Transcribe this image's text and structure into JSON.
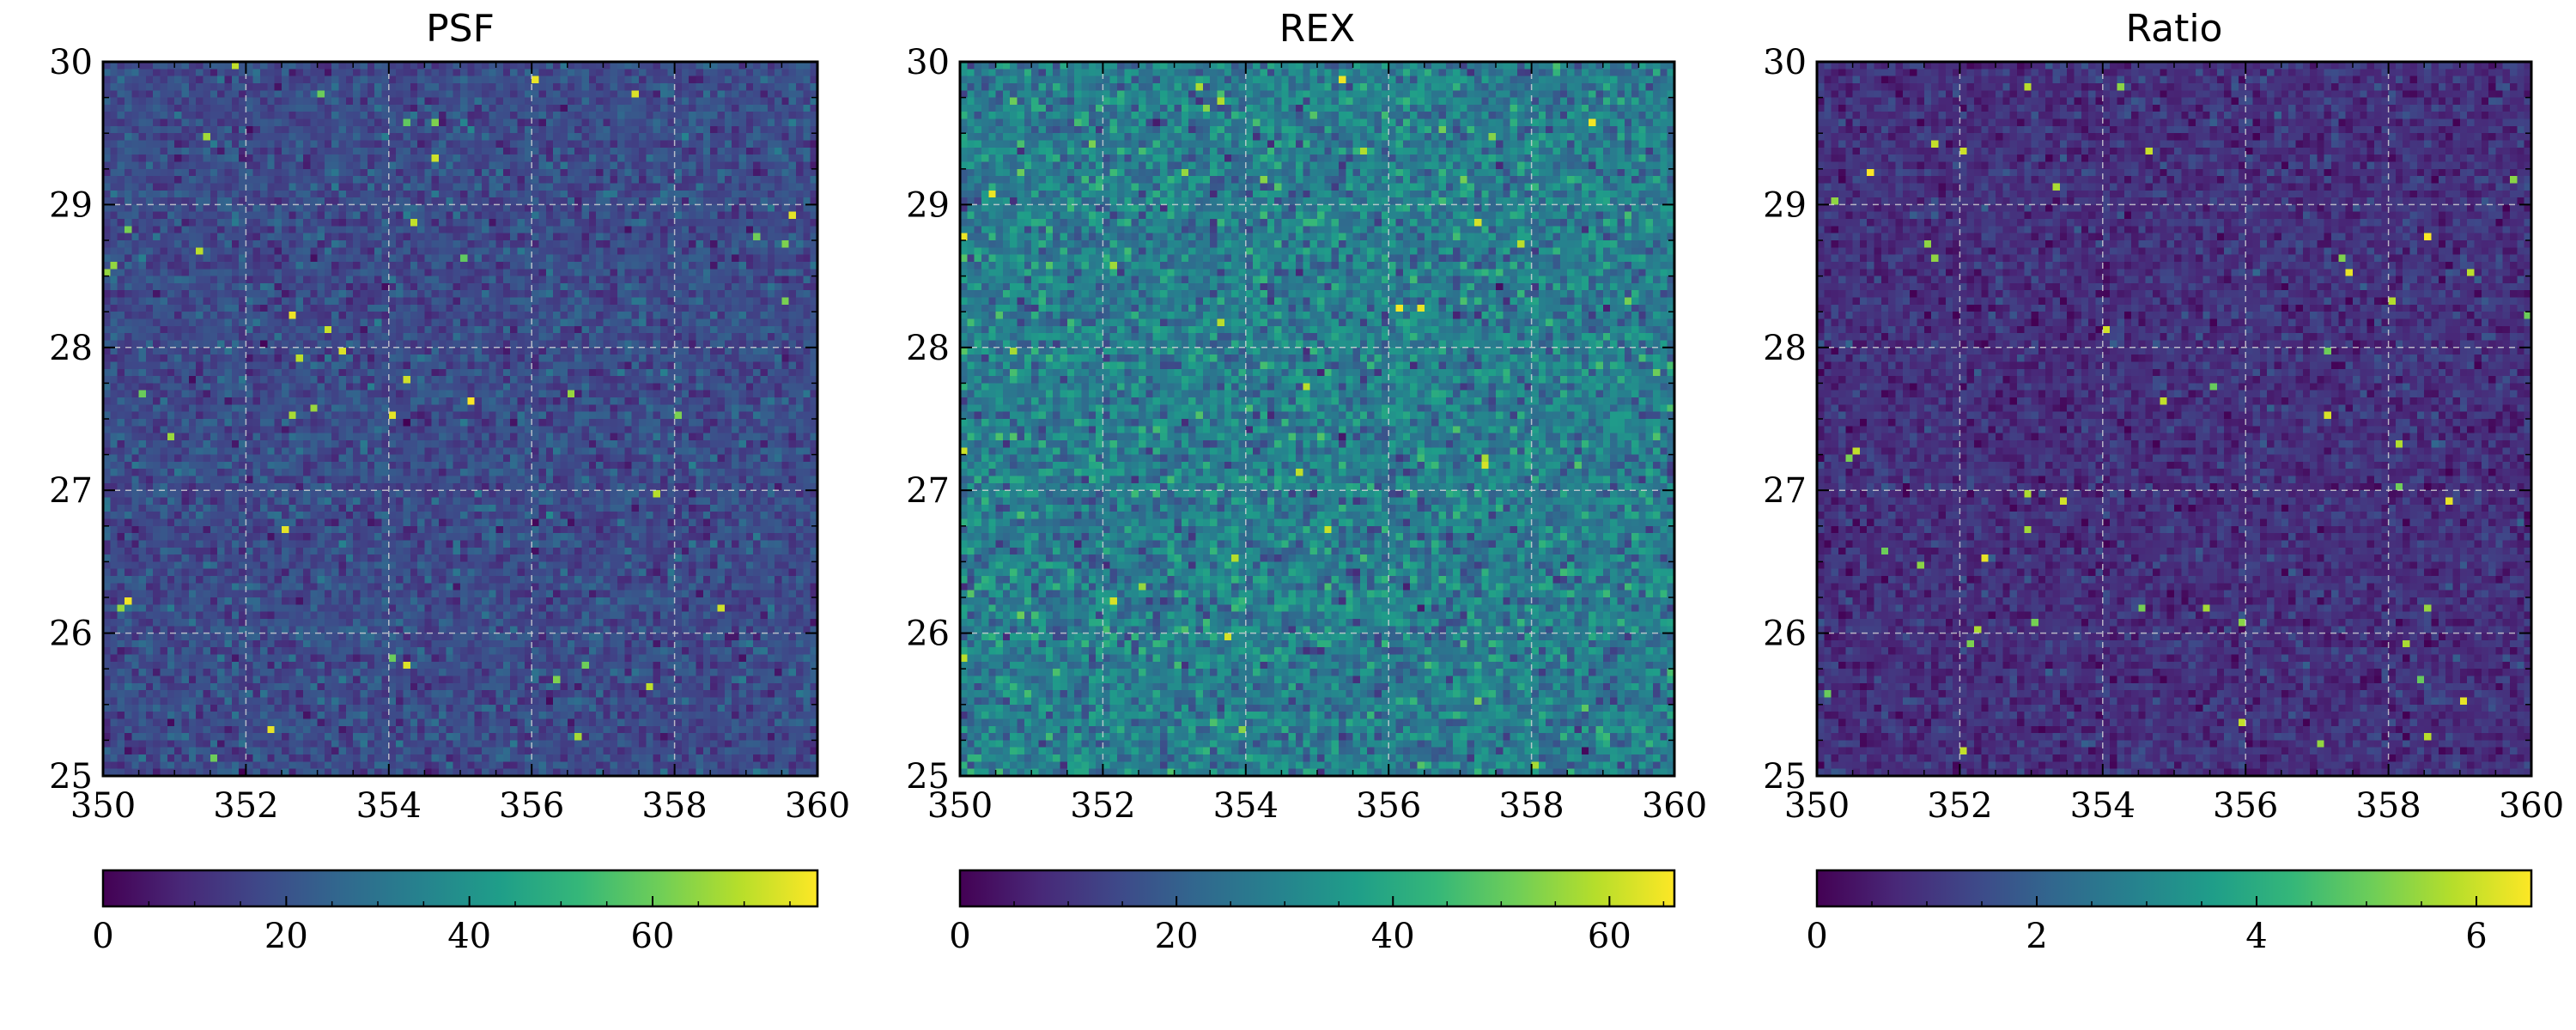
{
  "chart_data": [
    {
      "type": "heatmap",
      "title": "PSF",
      "xlim": [
        350,
        360
      ],
      "ylim": [
        25,
        30
      ],
      "x_ticks": [
        "350",
        "352",
        "354",
        "356",
        "358",
        "360"
      ],
      "y_ticks": [
        "25",
        "26",
        "27",
        "28",
        "29",
        "30"
      ],
      "grid": true,
      "colormap": "viridis",
      "grid_resolution": [
        100,
        100
      ],
      "value_mean": 18,
      "value_spread": 5,
      "colorbar": {
        "range": [
          0,
          78
        ],
        "ticks": [
          "0",
          "20",
          "40",
          "60"
        ],
        "placement": "bottom"
      }
    },
    {
      "type": "heatmap",
      "title": "REX",
      "xlim": [
        350,
        360
      ],
      "ylim": [
        25,
        30
      ],
      "x_ticks": [
        "350",
        "352",
        "354",
        "356",
        "358",
        "360"
      ],
      "y_ticks": [
        "25",
        "26",
        "27",
        "28",
        "29",
        "30"
      ],
      "grid": true,
      "colormap": "viridis",
      "grid_resolution": [
        100,
        100
      ],
      "value_mean": 28,
      "value_spread": 7,
      "colorbar": {
        "range": [
          0,
          66
        ],
        "ticks": [
          "0",
          "20",
          "40",
          "60"
        ],
        "placement": "bottom"
      }
    },
    {
      "type": "heatmap",
      "title": "Ratio",
      "xlim": [
        350,
        360
      ],
      "ylim": [
        25,
        30
      ],
      "x_ticks": [
        "350",
        "352",
        "354",
        "356",
        "358",
        "360"
      ],
      "y_ticks": [
        "25",
        "26",
        "27",
        "28",
        "29",
        "30"
      ],
      "grid": true,
      "colormap": "viridis",
      "grid_resolution": [
        100,
        100
      ],
      "value_mean": 0.9,
      "value_spread": 0.35,
      "colorbar": {
        "range": [
          0,
          6.5
        ],
        "ticks": [
          "0",
          "2",
          "4",
          "6"
        ],
        "placement": "bottom"
      }
    }
  ],
  "colors": {
    "viridis": [
      "#440154",
      "#482878",
      "#3e4989",
      "#31688e",
      "#26828e",
      "#1f9e89",
      "#35b779",
      "#6ece58",
      "#b5de2b",
      "#fde725"
    ],
    "grid_line": "#d8d8d8",
    "frame": "#000000"
  }
}
